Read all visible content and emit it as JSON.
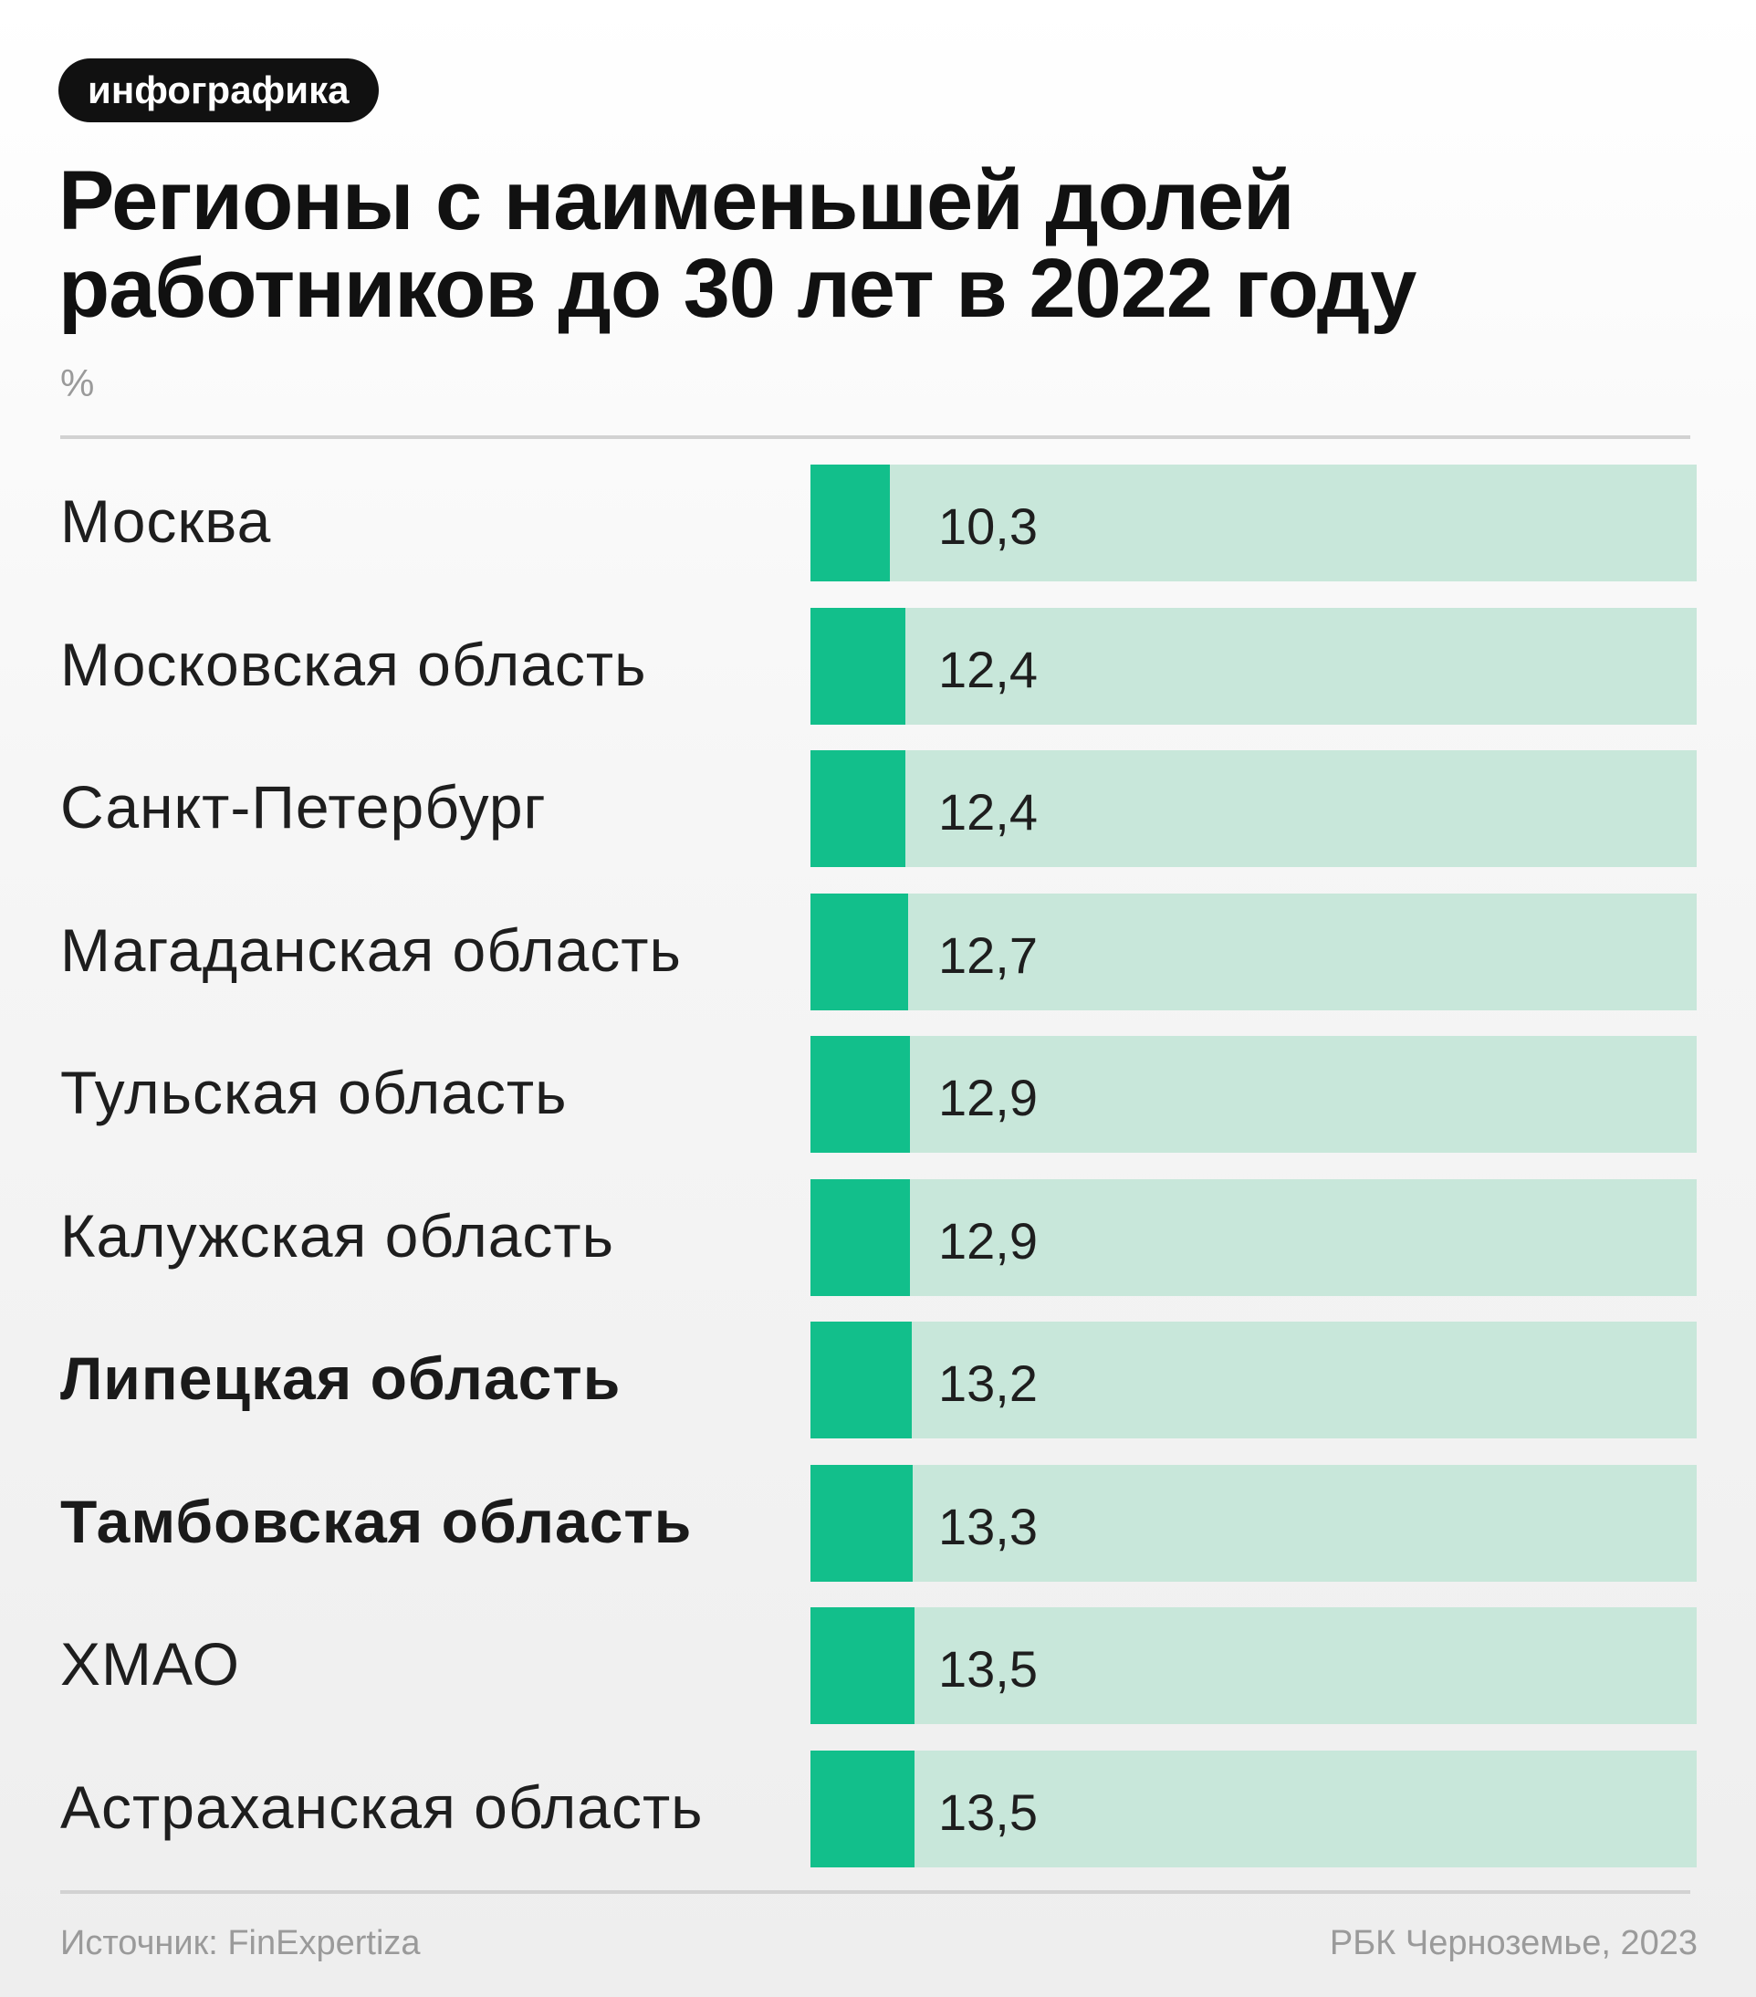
{
  "badge": "инфографика",
  "colors": {
    "bar": "#12bf8b",
    "track": "#c8e7da",
    "text": "#1e1e1e",
    "muted": "#9a9a9a"
  },
  "chart_data": {
    "type": "bar",
    "orientation": "horizontal",
    "title": "Регионы с наименьшей долей работников до 30 лет в 2022 году",
    "unit": "%",
    "categories": [
      "Москва",
      "Московская область",
      "Санкт-Петербург",
      "Магаданская область",
      "Тульская область",
      "Калужская область",
      "Липецкая область",
      "Тамбовская область",
      "ХМАО",
      "Астраханская область"
    ],
    "values": [
      10.3,
      12.4,
      12.4,
      12.7,
      12.9,
      12.9,
      13.2,
      13.3,
      13.5,
      13.5
    ],
    "value_labels": [
      "10,3",
      "12,4",
      "12,4",
      "12,7",
      "12,9",
      "12,9",
      "13,2",
      "13,3",
      "13,5",
      "13,5"
    ],
    "highlighted": [
      "Липецкая область",
      "Тамбовская область"
    ],
    "xlim": [
      0,
      100
    ],
    "legend": "none",
    "grid": false
  },
  "footer": {
    "source": "Источник: FinExpertiza",
    "credit": "РБК Черноземье, 2023"
  }
}
